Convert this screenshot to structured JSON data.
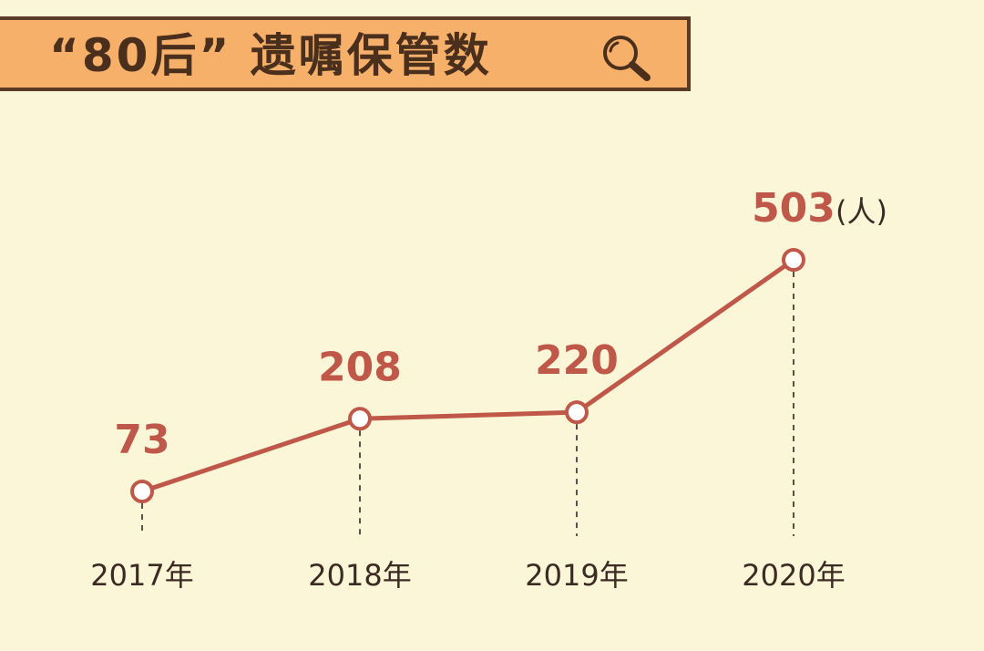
{
  "title": {
    "text": "“80后” 遗嘱保管数",
    "icon": "search-icon"
  },
  "colors": {
    "background": "#fcf6d8",
    "banner_fill": "#f6b069",
    "banner_border": "#5a3a24",
    "line": "#c0584a",
    "value_text": "#c0584a",
    "axis_text": "#3b2b22"
  },
  "chart_data": {
    "type": "line",
    "title": "“80后” 遗嘱保管数",
    "x": [
      "2017年",
      "2018年",
      "2019年",
      "2020年"
    ],
    "series": [
      {
        "values": [
          73,
          208,
          220,
          503
        ],
        "labels": [
          "73",
          "208",
          "220",
          "503"
        ]
      }
    ],
    "unit": "(人)",
    "xlabel": "",
    "ylabel": "",
    "ylim": [
      73,
      503
    ],
    "grid": false,
    "marker": "hollow-circle",
    "guide_lines": "dashed-vertical"
  }
}
